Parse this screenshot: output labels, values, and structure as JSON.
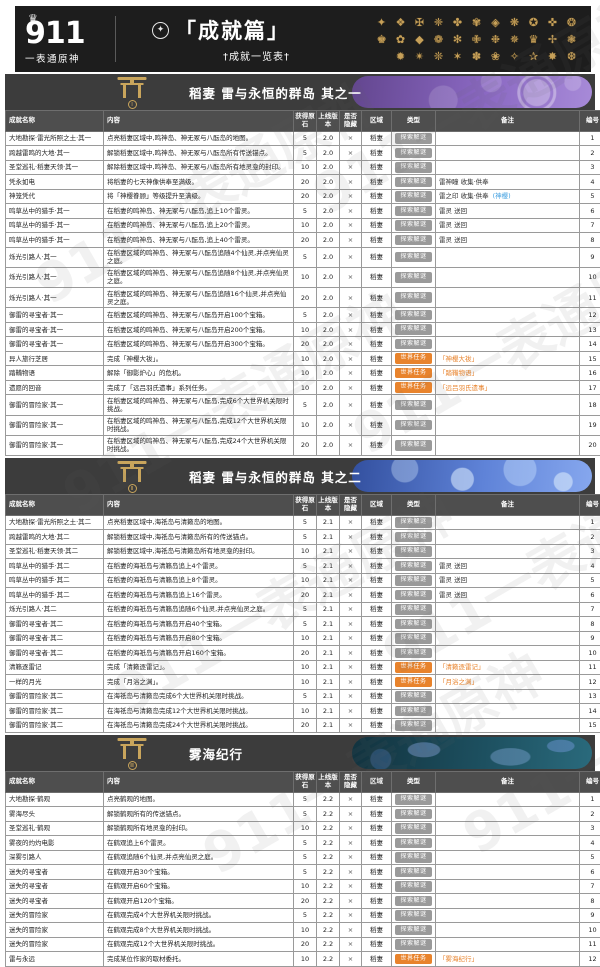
{
  "banner": {
    "logo_number": "911",
    "logo_subtitle": "一表通原神",
    "crown_icon": "♛",
    "emblem_icon": "✦",
    "title": "「成就篇」",
    "subtitle": "†成就一览表†",
    "badge_rows": [
      [
        "✦",
        "❖",
        "✠",
        "❈",
        "✤",
        "✾",
        "◈",
        "❋",
        "✪",
        "✜",
        "❂"
      ],
      [
        "♚",
        "✿",
        "◆",
        "❁",
        "✻",
        "✙",
        "❉",
        "✵",
        "♛",
        "✢",
        "❃"
      ],
      [
        "✹",
        "✴",
        "❊",
        "✶",
        "✽",
        "❀",
        "✧",
        "✰",
        "✸",
        "❆"
      ]
    ]
  },
  "watermark_text": "911一表通原神",
  "columns": [
    "成就名称",
    "内容",
    "获得原石",
    "上线版本",
    "是否隐藏",
    "区域",
    "类型",
    "备注",
    "编号"
  ],
  "labels": {
    "explore_type": "探索解谜",
    "quest_type": "世界任务"
  },
  "colors": {
    "accent_gold": "#c6a059",
    "banner_bg": "#1d1d1d",
    "section_bg": "#3c3c3c",
    "colhead_bg": "#4e4e4e",
    "badge_explore": "#9a9a9a",
    "badge_quest": "#e8832c",
    "note_orange": "#e8832c",
    "link_blue": "#3f9fe0"
  },
  "sections": [
    {
      "title": "稻妻 雷与永恒的群岛 其之一",
      "numeral": "Ⅰ",
      "art": {
        "from": "#63468f",
        "mid": "#8a68c2",
        "to": "#a78ad8"
      },
      "rows": [
        {
          "n": "大地勘探·雷光所照之土·其一",
          "c": "点亮稻妻区域中,鸣神岛、神无冢与八酝岛的地图。",
          "p": "5",
          "v": "2.0",
          "h": "×",
          "r": "稻妻",
          "t": "探索解谜",
          "note": "",
          "noteq": "",
          "link": "",
          "id": "1"
        },
        {
          "n": "跨越雷鸣的大地·其一",
          "c": "解锁稻妻区域中,鸣神岛、神无冢与八酝岛所有传送锚点。",
          "p": "5",
          "v": "2.0",
          "h": "×",
          "r": "稻妻",
          "t": "探索解谜",
          "note": "",
          "noteq": "",
          "link": "",
          "id": "2"
        },
        {
          "n": "圣堂巡礼·稻妻天领·其一",
          "c": "解除稻妻区域中,鸣神岛、神无冢与八酝岛所有地灵龛的封印。",
          "p": "10",
          "v": "2.0",
          "h": "×",
          "r": "稻妻",
          "t": "探索解谜",
          "note": "",
          "noteq": "",
          "link": "",
          "id": "3"
        },
        {
          "n": "凭永如电",
          "c": "将稻妻的七天神像供奉至满级。",
          "p": "20",
          "v": "2.0",
          "h": "×",
          "r": "稻妻",
          "t": "探索解谜",
          "note": "雷神瞳 收集·供奉",
          "noteq": "",
          "link": "",
          "id": "4"
        },
        {
          "n": "神笼凭代",
          "c": "将「神樱眷顾」等级提升至满级。",
          "p": "20",
          "v": "2.0",
          "h": "×",
          "r": "稻妻",
          "t": "探索解谜",
          "note": "雷之印 收集·供奉",
          "noteq": "",
          "link": "(神樱)",
          "id": "5"
        },
        {
          "n": "鸣草丛中的猎手·其一",
          "c": "在稻妻的鸣神岛、神无冢与八酝岛,追上10个雷灵。",
          "p": "5",
          "v": "2.0",
          "h": "×",
          "r": "稻妻",
          "t": "探索解谜",
          "note": "雷灵 送回",
          "noteq": "",
          "link": "",
          "id": "6"
        },
        {
          "n": "鸣草丛中的猎手·其一",
          "c": "在稻妻的鸣神岛、神无冢与八酝岛,追上20个雷灵。",
          "p": "10",
          "v": "2.0",
          "h": "×",
          "r": "稻妻",
          "t": "探索解谜",
          "note": "雷灵 送回",
          "noteq": "",
          "link": "",
          "id": "7"
        },
        {
          "n": "鸣草丛中的猎手·其一",
          "c": "在稻妻的鸣神岛、神无冢与八酝岛,追上40个雷灵。",
          "p": "20",
          "v": "2.0",
          "h": "×",
          "r": "稻妻",
          "t": "探索解谜",
          "note": "雷灵 送回",
          "noteq": "",
          "link": "",
          "id": "8"
        },
        {
          "n": "烁光引路人·其一",
          "c": "在稻妻区域的鸣神岛、神无冢与八酝岛追随4个仙灵,并点亮仙灵之庭。",
          "p": "5",
          "v": "2.0",
          "h": "×",
          "r": "稻妻",
          "t": "探索解谜",
          "note": "",
          "noteq": "",
          "link": "",
          "id": "9"
        },
        {
          "n": "烁光引路人·其一",
          "c": "在稻妻区域的鸣神岛、神无冢与八酝岛追随8个仙灵,并点亮仙灵之庭。",
          "p": "10",
          "v": "2.0",
          "h": "×",
          "r": "稻妻",
          "t": "探索解谜",
          "note": "",
          "noteq": "",
          "link": "",
          "id": "10"
        },
        {
          "n": "烁光引路人·其一",
          "c": "在稻妻区域的鸣神岛、神无冢与八酝岛追随16个仙灵,并点亮仙灵之庭。",
          "p": "20",
          "v": "2.0",
          "h": "×",
          "r": "稻妻",
          "t": "探索解谜",
          "note": "",
          "noteq": "",
          "link": "",
          "id": "11"
        },
        {
          "n": "御雷的寻宝者·其一",
          "c": "在稻妻区域的鸣神岛、神无冢与八酝岛开启100个宝箱。",
          "p": "5",
          "v": "2.0",
          "h": "×",
          "r": "稻妻",
          "t": "探索解谜",
          "note": "",
          "noteq": "",
          "link": "",
          "id": "12"
        },
        {
          "n": "御雷的寻宝者·其一",
          "c": "在稻妻区域的鸣神岛、神无冢与八酝岛开启200个宝箱。",
          "p": "10",
          "v": "2.0",
          "h": "×",
          "r": "稻妻",
          "t": "探索解谜",
          "note": "",
          "noteq": "",
          "link": "",
          "id": "13"
        },
        {
          "n": "御雷的寻宝者·其一",
          "c": "在稻妻区域的鸣神岛、神无冢与八酝岛开启300个宝箱。",
          "p": "20",
          "v": "2.0",
          "h": "×",
          "r": "稻妻",
          "t": "探索解谜",
          "note": "",
          "noteq": "",
          "link": "",
          "id": "14"
        },
        {
          "n": "异人旅行芝居",
          "c": "完成「神樱大祓」。",
          "p": "10",
          "v": "2.0",
          "h": "×",
          "r": "稻妻",
          "t": "世界任务",
          "note": "",
          "noteq": "「神樱大祓」",
          "link": "",
          "id": "15"
        },
        {
          "n": "踏鞴物语",
          "c": "解除「御影炉心」的危机。",
          "p": "10",
          "v": "2.0",
          "h": "×",
          "r": "稻妻",
          "t": "世界任务",
          "note": "",
          "noteq": "「踏鞴物语」",
          "link": "",
          "id": "16"
        },
        {
          "n": "遗愿的回音",
          "c": "完成了「远吕羽氏遗事」系列任务。",
          "p": "10",
          "v": "2.0",
          "h": "×",
          "r": "稻妻",
          "t": "世界任务",
          "note": "",
          "noteq": "「远吕羽氏遗事」",
          "link": "",
          "id": "17"
        },
        {
          "n": "御雷的冒险家·其一",
          "c": "在稻妻区域的鸣神岛、神无冢与八酝岛,完成6个大世界机关限时挑战。",
          "p": "5",
          "v": "2.0",
          "h": "×",
          "r": "稻妻",
          "t": "探索解谜",
          "note": "",
          "noteq": "",
          "link": "",
          "id": "18"
        },
        {
          "n": "御雷的冒险家·其一",
          "c": "在稻妻区域的鸣神岛、神无冢与八酝岛,完成12个大世界机关限时挑战。",
          "p": "10",
          "v": "2.0",
          "h": "×",
          "r": "稻妻",
          "t": "探索解谜",
          "note": "",
          "noteq": "",
          "link": "",
          "id": "19"
        },
        {
          "n": "御雷的冒险家·其一",
          "c": "在稻妻区域的鸣神岛、神无冢与八酝岛,完成24个大世界机关限时挑战。",
          "p": "20",
          "v": "2.0",
          "h": "×",
          "r": "稻妻",
          "t": "探索解谜",
          "note": "",
          "noteq": "",
          "link": "",
          "id": "20"
        }
      ]
    },
    {
      "title": "稻妻 雷与永恒的群岛 其之二",
      "numeral": "Ⅱ",
      "art": {
        "from": "#33509f",
        "mid": "#5f83d8",
        "to": "#86a7ee"
      },
      "rows": [
        {
          "n": "大地勘探·雷光所照之土·其二",
          "c": "点亮稻妻区域中,海祇岛与清籁岛的地图。",
          "p": "5",
          "v": "2.1",
          "h": "×",
          "r": "稻妻",
          "t": "探索解谜",
          "note": "",
          "noteq": "",
          "link": "",
          "id": "1"
        },
        {
          "n": "跨越雷鸣的大地·其二",
          "c": "解锁稻妻区域中,海祇岛与清籁岛所有的传送锚点。",
          "p": "5",
          "v": "2.1",
          "h": "×",
          "r": "稻妻",
          "t": "探索解谜",
          "note": "",
          "noteq": "",
          "link": "",
          "id": "2"
        },
        {
          "n": "圣堂巡礼·稻妻天领·其二",
          "c": "解锁稻妻区域中,海祇岛与清籁岛所有地灵龛的封印。",
          "p": "10",
          "v": "2.1",
          "h": "×",
          "r": "稻妻",
          "t": "探索解谜",
          "note": "",
          "noteq": "",
          "link": "",
          "id": "3"
        },
        {
          "n": "鸣草丛中的猎手·其二",
          "c": "在稻妻的海祇岛与清籁岛追上4个雷灵。",
          "p": "5",
          "v": "2.1",
          "h": "×",
          "r": "稻妻",
          "t": "探索解谜",
          "note": "雷灵 送回",
          "noteq": "",
          "link": "",
          "id": "4"
        },
        {
          "n": "鸣草丛中的猎手·其二",
          "c": "在稻妻的海祇岛与清籁岛追上8个雷灵。",
          "p": "10",
          "v": "2.1",
          "h": "×",
          "r": "稻妻",
          "t": "探索解谜",
          "note": "雷灵 送回",
          "noteq": "",
          "link": "",
          "id": "5"
        },
        {
          "n": "鸣草丛中的猎手·其二",
          "c": "在稻妻的海祇岛与清籁岛追上16个雷灵。",
          "p": "20",
          "v": "2.1",
          "h": "×",
          "r": "稻妻",
          "t": "探索解谜",
          "note": "雷灵 送回",
          "noteq": "",
          "link": "",
          "id": "6"
        },
        {
          "n": "烁光引路人·其二",
          "c": "在稻妻的海祇岛与清籁岛追随6个仙灵,并点亮仙灵之庭。",
          "p": "5",
          "v": "2.1",
          "h": "×",
          "r": "稻妻",
          "t": "探索解谜",
          "note": "",
          "noteq": "",
          "link": "",
          "id": "7"
        },
        {
          "n": "御雷的寻宝者·其二",
          "c": "在稻妻的海祇岛与清籁岛开启40个宝箱。",
          "p": "5",
          "v": "2.1",
          "h": "×",
          "r": "稻妻",
          "t": "探索解谜",
          "note": "",
          "noteq": "",
          "link": "",
          "id": "8"
        },
        {
          "n": "御雷的寻宝者·其二",
          "c": "在稻妻的海祇岛与清籁岛开启80个宝箱。",
          "p": "10",
          "v": "2.1",
          "h": "×",
          "r": "稻妻",
          "t": "探索解谜",
          "note": "",
          "noteq": "",
          "link": "",
          "id": "9"
        },
        {
          "n": "御雷的寻宝者·其二",
          "c": "在稻妻的海祇岛与清籁岛开启160个宝箱。",
          "p": "20",
          "v": "2.1",
          "h": "×",
          "r": "稻妻",
          "t": "探索解谜",
          "note": "",
          "noteq": "",
          "link": "",
          "id": "10"
        },
        {
          "n": "清籁逐雷记",
          "c": "完成「清籁逐雷记」。",
          "p": "10",
          "v": "2.1",
          "h": "×",
          "r": "稻妻",
          "t": "世界任务",
          "note": "",
          "noteq": "「清籁逐雷记」",
          "link": "",
          "id": "11"
        },
        {
          "n": "一样的月光",
          "c": "完成「月浴之渊」。",
          "p": "10",
          "v": "2.1",
          "h": "×",
          "r": "稻妻",
          "t": "世界任务",
          "note": "",
          "noteq": "「月浴之渊」",
          "link": "",
          "id": "12"
        },
        {
          "n": "御雷的冒险家·其二",
          "c": "在海祇岛与清籁岛完成6个大世界机关限时挑战。",
          "p": "5",
          "v": "2.1",
          "h": "×",
          "r": "稻妻",
          "t": "探索解谜",
          "note": "",
          "noteq": "",
          "link": "",
          "id": "13"
        },
        {
          "n": "御雷的冒险家·其二",
          "c": "在海祇岛与清籁岛完成12个大世界机关限时挑战。",
          "p": "10",
          "v": "2.1",
          "h": "×",
          "r": "稻妻",
          "t": "探索解谜",
          "note": "",
          "noteq": "",
          "link": "",
          "id": "14"
        },
        {
          "n": "御雷的冒险家·其二",
          "c": "在海祇岛与清籁岛完成24个大世界机关限时挑战。",
          "p": "20",
          "v": "2.1",
          "h": "×",
          "r": "稻妻",
          "t": "探索解谜",
          "note": "",
          "noteq": "",
          "link": "",
          "id": "15"
        }
      ]
    },
    {
      "title": "雾海纪行",
      "numeral": "Ⅲ",
      "art": {
        "from": "#12333f",
        "mid": "#1d5060",
        "to": "#2a6a7c"
      },
      "rows": [
        {
          "n": "大地勘探·鹤观",
          "c": "点亮鹤观的地图。",
          "p": "5",
          "v": "2.2",
          "h": "×",
          "r": "稻妻",
          "t": "探索解谜",
          "note": "",
          "noteq": "",
          "link": "",
          "id": "1"
        },
        {
          "n": "雾海尽头",
          "c": "解锁鹤观所有的传送锚点。",
          "p": "5",
          "v": "2.2",
          "h": "×",
          "r": "稻妻",
          "t": "探索解谜",
          "note": "",
          "noteq": "",
          "link": "",
          "id": "2"
        },
        {
          "n": "圣堂巡礼·鹤观",
          "c": "解锁鹤观所有地灵龛的封印。",
          "p": "10",
          "v": "2.2",
          "h": "×",
          "r": "稻妻",
          "t": "探索解谜",
          "note": "",
          "noteq": "",
          "link": "",
          "id": "3"
        },
        {
          "n": "雾夜的灼灼电影",
          "c": "在鹤观追上6个雷灵。",
          "p": "5",
          "v": "2.2",
          "h": "×",
          "r": "稻妻",
          "t": "探索解谜",
          "note": "",
          "noteq": "",
          "link": "",
          "id": "4"
        },
        {
          "n": "深雾引路人",
          "c": "在鹤观追随6个仙灵,并点亮仙灵之庭。",
          "p": "5",
          "v": "2.2",
          "h": "×",
          "r": "稻妻",
          "t": "探索解谜",
          "note": "",
          "noteq": "",
          "link": "",
          "id": "5"
        },
        {
          "n": "迷失的寻宝者",
          "c": "在鹤观开启30个宝箱。",
          "p": "5",
          "v": "2.2",
          "h": "×",
          "r": "稻妻",
          "t": "探索解谜",
          "note": "",
          "noteq": "",
          "link": "",
          "id": "6"
        },
        {
          "n": "迷失的寻宝者",
          "c": "在鹤观开启60个宝箱。",
          "p": "10",
          "v": "2.2",
          "h": "×",
          "r": "稻妻",
          "t": "探索解谜",
          "note": "",
          "noteq": "",
          "link": "",
          "id": "7"
        },
        {
          "n": "迷失的寻宝者",
          "c": "在鹤观开启120个宝箱。",
          "p": "20",
          "v": "2.2",
          "h": "×",
          "r": "稻妻",
          "t": "探索解谜",
          "note": "",
          "noteq": "",
          "link": "",
          "id": "8"
        },
        {
          "n": "迷失的冒险家",
          "c": "在鹤观完成4个大世界机关限时挑战。",
          "p": "5",
          "v": "2.2",
          "h": "×",
          "r": "稻妻",
          "t": "探索解谜",
          "note": "",
          "noteq": "",
          "link": "",
          "id": "9"
        },
        {
          "n": "迷失的冒险家",
          "c": "在鹤观完成8个大世界机关限时挑战。",
          "p": "10",
          "v": "2.2",
          "h": "×",
          "r": "稻妻",
          "t": "探索解谜",
          "note": "",
          "noteq": "",
          "link": "",
          "id": "10"
        },
        {
          "n": "迷失的冒险家",
          "c": "在鹤观完成12个大世界机关限时挑战。",
          "p": "20",
          "v": "2.2",
          "h": "×",
          "r": "稻妻",
          "t": "探索解谜",
          "note": "",
          "noteq": "",
          "link": "",
          "id": "11"
        },
        {
          "n": "雷与永远",
          "c": "完成某位作家的取材委托。",
          "p": "10",
          "v": "2.2",
          "h": "×",
          "r": "稻妻",
          "t": "世界任务",
          "note": "",
          "noteq": "「雾海纪行」",
          "link": "",
          "id": "12"
        }
      ]
    }
  ]
}
